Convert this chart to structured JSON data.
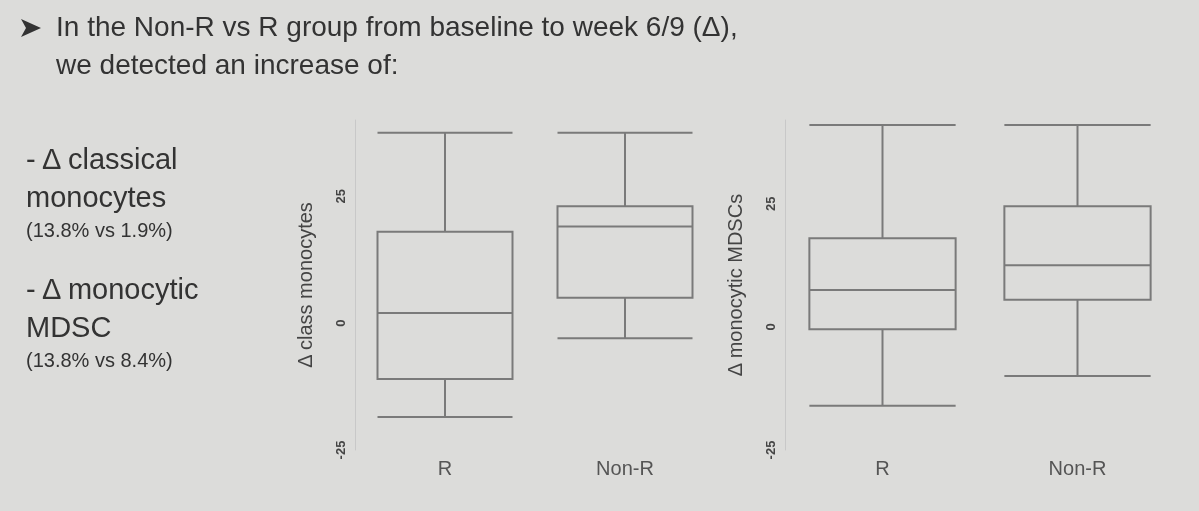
{
  "chart_data": [
    {
      "type": "box",
      "title": "In the Non-R vs R group from baseline to week 6/9 (Δ), we detected an increase of:",
      "annotations": [
        "- Δ classical monocytes",
        "(13.8% vs 1.9%)",
        "- Δ monocytic MDSC",
        "(13.8% vs 8.4%)"
      ],
      "ylabel": "Δ class monocytes",
      "categories": [
        "R",
        "Non-R"
      ],
      "color": "#7a7a7a",
      "ylim": [
        -25,
        40
      ],
      "yticks": [
        -25,
        0,
        25
      ],
      "boxes": [
        {
          "low": -18.5,
          "q1": -11,
          "median": 2,
          "q3": 18,
          "high": 37.5
        },
        {
          "low": -3,
          "q1": 5,
          "median": 19,
          "q3": 23,
          "high": 37.5
        }
      ]
    },
    {
      "type": "box",
      "ylabel": "Δ monocytic MDSCs",
      "categories": [
        "R",
        "Non-R"
      ],
      "color": "#7a7a7a",
      "ylim": [
        -25,
        42
      ],
      "yticks": [
        -25,
        0,
        25
      ],
      "boxes": [
        {
          "low": -16,
          "q1": -0.5,
          "median": 7.5,
          "q3": 18,
          "high": 41
        },
        {
          "low": -10,
          "q1": 5.5,
          "median": 12.5,
          "q3": 24.5,
          "high": 41
        }
      ]
    }
  ]
}
